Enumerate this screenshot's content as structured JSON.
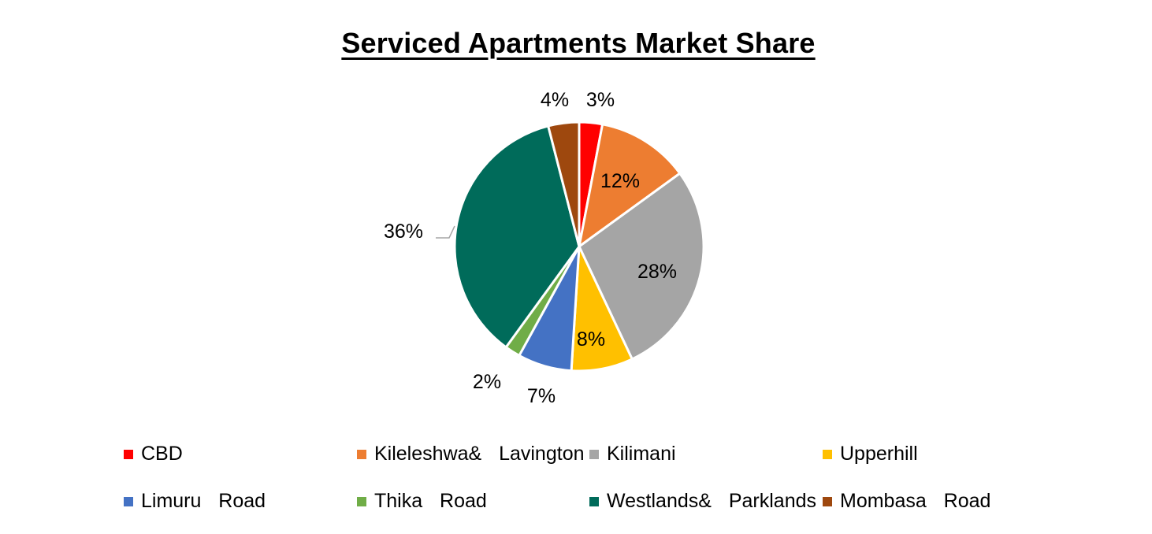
{
  "chart_data": {
    "type": "pie",
    "title": "Serviced  Apartments Market Share",
    "slices": [
      {
        "name": "CBD",
        "value": 3,
        "label": "3%",
        "color": "#FF0000"
      },
      {
        "name": "Kileleshwa&  Lavington",
        "value": 12,
        "label": "12%",
        "color": "#ED7D31"
      },
      {
        "name": "Kilimani",
        "value": 28,
        "label": "28%",
        "color": "#A5A5A5"
      },
      {
        "name": "Upperhill",
        "value": 8,
        "label": "8%",
        "color": "#FFC000"
      },
      {
        "name": "Limuru  Road",
        "value": 7,
        "label": "7%",
        "color": "#4472C4"
      },
      {
        "name": "Thika  Road",
        "value": 2,
        "label": "2%",
        "color": "#70AD47"
      },
      {
        "name": "Westlands&  Parklands",
        "value": 36,
        "label": "36%",
        "color": "#006B5A"
      },
      {
        "name": "Mombasa  Road",
        "value": 4,
        "label": "4%",
        "color": "#9E480E"
      }
    ],
    "legend_position": "bottom"
  }
}
